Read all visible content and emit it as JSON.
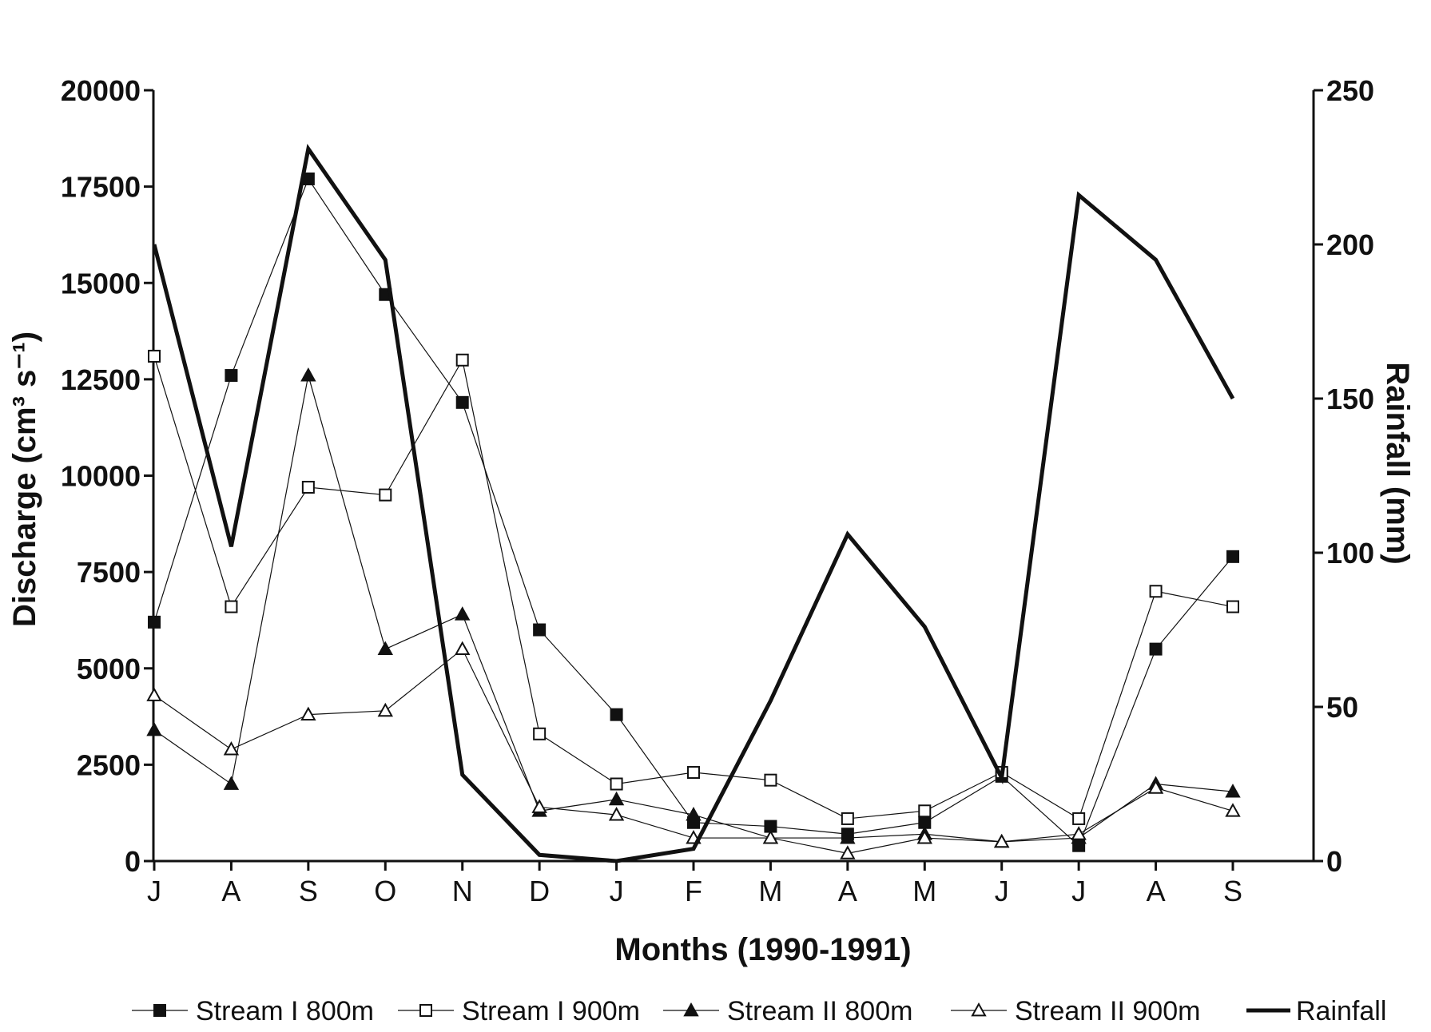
{
  "chart_data": {
    "type": "line",
    "title": "",
    "xlabel": "Months (1990-1991)",
    "ylabel": "Discharge (cm³ s⁻¹)",
    "y2label": "Rainfall (mm)",
    "categories": [
      "J",
      "A",
      "S",
      "O",
      "N",
      "D",
      "J",
      "F",
      "M",
      "A",
      "M",
      "J",
      "J",
      "A",
      "S"
    ],
    "ylim": [
      0,
      20000
    ],
    "yticks": [
      0,
      2500,
      5000,
      7500,
      10000,
      12500,
      15000,
      17500,
      20000
    ],
    "y2lim": [
      0,
      250
    ],
    "y2ticks": [
      0,
      50,
      100,
      150,
      200,
      250
    ],
    "grid": false,
    "legend_position": "bottom",
    "series": [
      {
        "name": "Stream I 800m",
        "axis": "left",
        "marker": "filled-square",
        "values": [
          6200,
          12600,
          17700,
          14700,
          11900,
          6000,
          3800,
          1000,
          900,
          700,
          1000,
          2200,
          400,
          5500,
          7900
        ]
      },
      {
        "name": "Stream I 900m",
        "axis": "left",
        "marker": "open-square",
        "values": [
          13100,
          6600,
          9700,
          9500,
          13000,
          3300,
          2000,
          2300,
          2100,
          1100,
          1300,
          2300,
          1100,
          7000,
          6600
        ]
      },
      {
        "name": "Stream II 800m",
        "axis": "left",
        "marker": "filled-triangle",
        "values": [
          3400,
          2000,
          12600,
          5500,
          6400,
          1300,
          1600,
          1200,
          600,
          600,
          700,
          500,
          600,
          2000,
          1800
        ]
      },
      {
        "name": "Stream II 900m",
        "axis": "left",
        "marker": "open-triangle",
        "values": [
          4300,
          2900,
          3800,
          3900,
          5500,
          1400,
          1200,
          600,
          600,
          200,
          600,
          500,
          700,
          1900,
          1300
        ]
      },
      {
        "name": "Rainfall",
        "axis": "right",
        "marker": "none",
        "values": [
          200,
          102,
          231,
          195,
          28,
          2,
          0,
          4,
          52,
          106,
          76,
          27,
          216,
          195,
          150
        ]
      }
    ]
  }
}
